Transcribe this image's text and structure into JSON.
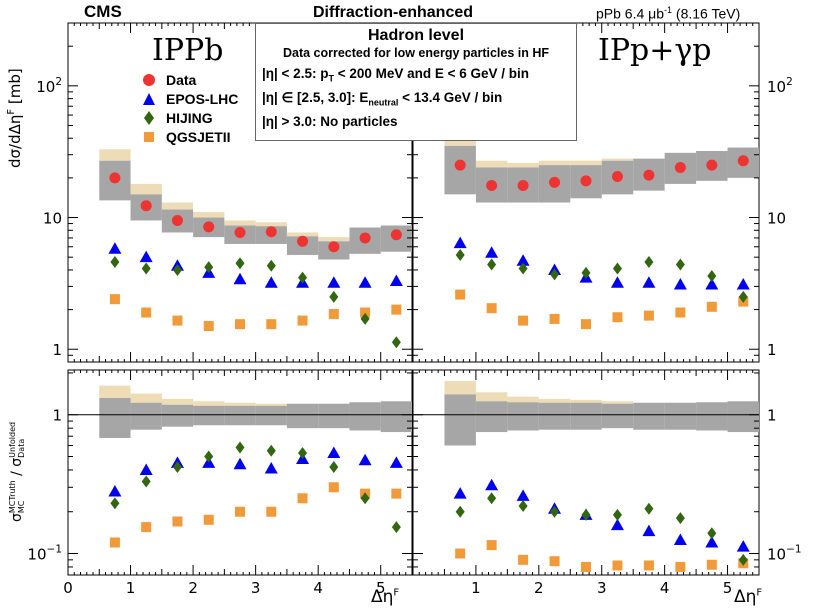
{
  "header": {
    "experiment": "CMS",
    "title": "Diffraction-enhanced",
    "lumi": "pPb 6.4 μb",
    "lumi_exp": "-1",
    "energy": "(8.16 TeV)"
  },
  "info_box": {
    "heading": "Hadron level",
    "subheading": "Data corrected for low energy particles in HF",
    "cut1_prefix": "|η| < 2.5: p",
    "cut1_sub": "T",
    "cut1_suffix": " < 200 MeV  and  E < 6 GeV / bin",
    "cut2_prefix": "|η| ∈ [2.5, 3.0]: E",
    "cut2_sub": "neutral",
    "cut2_suffix": " < 13.4 GeV / bin",
    "cut3": "|η| > 3.0: No particles"
  },
  "legend": [
    {
      "label": "Data",
      "color": "#ee3333",
      "marker": "circle"
    },
    {
      "label": "EPOS-LHC",
      "color": "#0000ee",
      "marker": "triangle"
    },
    {
      "label": "HIJING",
      "color": "#336611",
      "marker": "diamond"
    },
    {
      "label": "QGSJETII",
      "color": "#f09a3a",
      "marker": "square"
    }
  ],
  "panel_titles": {
    "left": "IPPb",
    "right": "IPp+γp"
  },
  "axis_labels": {
    "top_y": "dσ/dΔη",
    "top_y_sup": "F",
    "top_y_unit": " [mb]",
    "bottom_y_sigma1": "σ",
    "bottom_y_sub1": "MC",
    "bottom_y_sup1": "MCTruth",
    "bottom_y_slash": " / σ",
    "bottom_y_sub2": "Data",
    "bottom_y_sup2": "Unfolded",
    "x": "Δη",
    "x_sup": "F"
  },
  "chart_data": {
    "type": "scatter",
    "x_bin_edges": [
      0.5,
      1.0,
      1.5,
      2.0,
      2.5,
      3.0,
      3.5,
      4.0,
      4.5,
      5.0,
      5.5
    ],
    "x_points": [
      0.75,
      1.25,
      1.75,
      2.25,
      2.75,
      3.25,
      3.75,
      4.25,
      4.75,
      5.25
    ],
    "xlim": [
      0,
      5.5
    ],
    "x_ticks": [
      "0",
      "1",
      "2",
      "3",
      "4",
      "5"
    ],
    "top_ylim": [
      0.8,
      300
    ],
    "top_y_ticks": [
      {
        "value": 1,
        "label": "1"
      },
      {
        "value": 10,
        "label": "10"
      },
      {
        "value": 100,
        "label": "10",
        "sup": "2"
      }
    ],
    "ratio_ylim": [
      0.07,
      2.1
    ],
    "ratio_y_ticks": [
      {
        "value": 1,
        "label": "1"
      },
      {
        "value": 0.1,
        "label": "10",
        "sup": "−1"
      }
    ],
    "panels": [
      {
        "name": "IPPb",
        "data": [
          20,
          12.3,
          9.5,
          8.5,
          7.7,
          7.8,
          6.6,
          6.0,
          7.0,
          7.4
        ],
        "syst_band": [
          [
            13.5,
            27
          ],
          [
            9.5,
            15
          ],
          [
            7.7,
            11.5
          ],
          [
            7.1,
            10
          ],
          [
            6.3,
            8.7
          ],
          [
            6.3,
            8.6
          ],
          [
            5.2,
            7.2
          ],
          [
            4.8,
            6.6
          ],
          [
            5.3,
            8.4
          ],
          [
            5.5,
            8.7
          ]
        ],
        "model_band": [
          [
            27,
            33
          ],
          [
            15,
            18
          ],
          [
            11.5,
            13
          ],
          [
            10,
            11
          ],
          [
            8.7,
            9.5
          ],
          [
            8.6,
            9.2
          ],
          [
            7.2,
            7.7
          ],
          [
            6.6,
            7.1
          ],
          [
            8.4,
            8.4
          ],
          [
            8.7,
            8.7
          ]
        ],
        "epos": [
          5.8,
          5.0,
          4.3,
          3.8,
          3.4,
          3.2,
          3.2,
          3.2,
          3.2,
          3.3
        ],
        "hijing": [
          4.6,
          4.1,
          4.0,
          4.2,
          4.5,
          4.3,
          3.5,
          2.5,
          1.7,
          1.13
        ],
        "qgsjet": [
          2.4,
          1.9,
          1.65,
          1.5,
          1.55,
          1.55,
          1.65,
          1.85,
          1.9,
          2.0
        ],
        "ratio_syst": [
          [
            0.68,
            1.32
          ],
          [
            0.78,
            1.22
          ],
          [
            0.82,
            1.18
          ],
          [
            0.84,
            1.16
          ],
          [
            0.84,
            1.16
          ],
          [
            0.84,
            1.16
          ],
          [
            0.8,
            1.2
          ],
          [
            0.8,
            1.2
          ],
          [
            0.77,
            1.23
          ],
          [
            0.75,
            1.25
          ]
        ],
        "ratio_model": [
          [
            1.32,
            1.62
          ],
          [
            1.22,
            1.42
          ],
          [
            1.18,
            1.3
          ],
          [
            1.16,
            1.25
          ],
          [
            1.16,
            1.22
          ],
          [
            1.16,
            1.2
          ],
          [
            1.2,
            1.2
          ],
          [
            1.2,
            1.2
          ],
          [
            1.23,
            1.23
          ],
          [
            1.25,
            1.25
          ]
        ],
        "ratio_epos": [
          0.28,
          0.4,
          0.45,
          0.45,
          0.44,
          0.41,
          0.48,
          0.53,
          0.47,
          0.45
        ],
        "ratio_hijing": [
          0.23,
          0.33,
          0.42,
          0.5,
          0.58,
          0.55,
          0.53,
          0.42,
          0.25,
          0.155
        ],
        "ratio_qgsjet": [
          0.12,
          0.155,
          0.17,
          0.175,
          0.2,
          0.2,
          0.25,
          0.3,
          0.27,
          0.27
        ]
      },
      {
        "name": "IPp+γp",
        "data": [
          25,
          17.5,
          17.5,
          18.5,
          19,
          20.5,
          21,
          24,
          25,
          27
        ],
        "syst_band": [
          [
            15,
            35
          ],
          [
            13,
            24
          ],
          [
            13,
            24
          ],
          [
            13,
            25
          ],
          [
            14,
            25
          ],
          [
            15,
            27
          ],
          [
            16,
            28
          ],
          [
            18,
            31
          ],
          [
            19,
            32
          ],
          [
            20,
            34
          ]
        ],
        "model_band": [
          [
            35,
            44
          ],
          [
            24,
            27
          ],
          [
            24,
            26
          ],
          [
            25,
            27
          ],
          [
            25,
            27
          ],
          [
            27,
            28
          ],
          [
            28,
            28
          ],
          [
            31,
            31
          ],
          [
            32,
            32
          ],
          [
            34,
            34
          ]
        ],
        "epos": [
          6.4,
          5.4,
          4.7,
          4.0,
          3.5,
          3.2,
          3.2,
          3.1,
          3.1,
          3.1
        ],
        "hijing": [
          5.2,
          4.4,
          4.1,
          3.7,
          3.8,
          4.1,
          4.6,
          4.4,
          3.6,
          2.5
        ],
        "qgsjet": [
          2.6,
          2.05,
          1.65,
          1.7,
          1.55,
          1.75,
          1.8,
          1.9,
          2.1,
          2.3
        ],
        "ratio_syst": [
          [
            0.6,
            1.4
          ],
          [
            0.75,
            1.25
          ],
          [
            0.77,
            1.23
          ],
          [
            0.78,
            1.22
          ],
          [
            0.78,
            1.22
          ],
          [
            0.8,
            1.2
          ],
          [
            0.78,
            1.22
          ],
          [
            0.78,
            1.22
          ],
          [
            0.77,
            1.23
          ],
          [
            0.75,
            1.25
          ]
        ],
        "ratio_model": [
          [
            1.4,
            1.75
          ],
          [
            1.25,
            1.45
          ],
          [
            1.23,
            1.35
          ],
          [
            1.22,
            1.3
          ],
          [
            1.22,
            1.28
          ],
          [
            1.2,
            1.25
          ],
          [
            1.22,
            1.22
          ],
          [
            1.22,
            1.22
          ],
          [
            1.23,
            1.23
          ],
          [
            1.25,
            1.25
          ]
        ],
        "ratio_epos": [
          0.27,
          0.31,
          0.26,
          0.21,
          0.19,
          0.16,
          0.145,
          0.125,
          0.12,
          0.112
        ],
        "ratio_hijing": [
          0.2,
          0.25,
          0.22,
          0.2,
          0.19,
          0.19,
          0.21,
          0.18,
          0.14,
          0.09
        ],
        "ratio_qgsjet": [
          0.1,
          0.115,
          0.09,
          0.088,
          0.08,
          0.082,
          0.082,
          0.08,
          0.083,
          0.085
        ]
      }
    ]
  }
}
